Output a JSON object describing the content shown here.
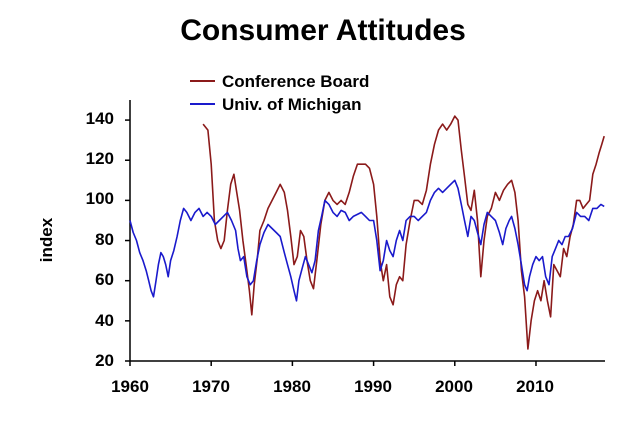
{
  "chart_data": {
    "type": "line",
    "title": "Consumer Attitudes",
    "xlabel": "",
    "ylabel": "index",
    "xlim": [
      1960,
      2018.5
    ],
    "ylim": [
      20,
      150
    ],
    "x_ticks": [
      "1960",
      "1970",
      "1980",
      "1990",
      "2000",
      "2010"
    ],
    "y_ticks": [
      "20",
      "40",
      "60",
      "80",
      "100",
      "120",
      "140"
    ],
    "grid": false,
    "legend": "top-left",
    "series": [
      {
        "name": "Conference Board",
        "color": "#8b1a1a",
        "points": [
          [
            1969.0,
            138
          ],
          [
            1969.6,
            135
          ],
          [
            1970.0,
            118
          ],
          [
            1970.4,
            90
          ],
          [
            1970.8,
            80
          ],
          [
            1971.2,
            76
          ],
          [
            1971.6,
            80
          ],
          [
            1972.0,
            95
          ],
          [
            1972.4,
            108
          ],
          [
            1972.8,
            113
          ],
          [
            1973.1,
            105
          ],
          [
            1973.5,
            95
          ],
          [
            1973.9,
            80
          ],
          [
            1974.3,
            68
          ],
          [
            1974.7,
            55
          ],
          [
            1975.0,
            43
          ],
          [
            1975.3,
            58
          ],
          [
            1975.7,
            72
          ],
          [
            1976.0,
            85
          ],
          [
            1976.5,
            90
          ],
          [
            1977.0,
            96
          ],
          [
            1977.5,
            100
          ],
          [
            1978.0,
            104
          ],
          [
            1978.5,
            108
          ],
          [
            1979.0,
            104
          ],
          [
            1979.4,
            95
          ],
          [
            1979.8,
            82
          ],
          [
            1980.2,
            68
          ],
          [
            1980.6,
            72
          ],
          [
            1981.0,
            85
          ],
          [
            1981.4,
            82
          ],
          [
            1981.8,
            70
          ],
          [
            1982.2,
            60
          ],
          [
            1982.6,
            56
          ],
          [
            1983.0,
            70
          ],
          [
            1983.5,
            88
          ],
          [
            1984.0,
            100
          ],
          [
            1984.5,
            104
          ],
          [
            1985.0,
            100
          ],
          [
            1985.5,
            98
          ],
          [
            1986.0,
            100
          ],
          [
            1986.5,
            98
          ],
          [
            1987.0,
            104
          ],
          [
            1987.5,
            112
          ],
          [
            1988.0,
            118
          ],
          [
            1988.5,
            118
          ],
          [
            1989.0,
            118
          ],
          [
            1989.5,
            116
          ],
          [
            1990.0,
            108
          ],
          [
            1990.4,
            92
          ],
          [
            1990.8,
            70
          ],
          [
            1991.2,
            60
          ],
          [
            1991.6,
            68
          ],
          [
            1992.0,
            52
          ],
          [
            1992.4,
            48
          ],
          [
            1992.8,
            58
          ],
          [
            1993.2,
            62
          ],
          [
            1993.6,
            60
          ],
          [
            1994.0,
            78
          ],
          [
            1994.5,
            90
          ],
          [
            1995.0,
            100
          ],
          [
            1995.5,
            100
          ],
          [
            1996.0,
            98
          ],
          [
            1996.5,
            105
          ],
          [
            1997.0,
            118
          ],
          [
            1997.5,
            128
          ],
          [
            1998.0,
            135
          ],
          [
            1998.5,
            138
          ],
          [
            1999.0,
            135
          ],
          [
            1999.5,
            138
          ],
          [
            2000.0,
            142
          ],
          [
            2000.4,
            140
          ],
          [
            2000.8,
            125
          ],
          [
            2001.2,
            112
          ],
          [
            2001.6,
            98
          ],
          [
            2002.0,
            95
          ],
          [
            2002.4,
            105
          ],
          [
            2002.8,
            90
          ],
          [
            2003.2,
            62
          ],
          [
            2003.6,
            80
          ],
          [
            2004.0,
            92
          ],
          [
            2004.5,
            96
          ],
          [
            2005.0,
            104
          ],
          [
            2005.5,
            100
          ],
          [
            2006.0,
            105
          ],
          [
            2006.5,
            108
          ],
          [
            2007.0,
            110
          ],
          [
            2007.4,
            104
          ],
          [
            2007.8,
            90
          ],
          [
            2008.2,
            65
          ],
          [
            2008.6,
            52
          ],
          [
            2009.0,
            26
          ],
          [
            2009.4,
            40
          ],
          [
            2009.8,
            50
          ],
          [
            2010.2,
            55
          ],
          [
            2010.6,
            50
          ],
          [
            2011.0,
            60
          ],
          [
            2011.4,
            50
          ],
          [
            2011.8,
            42
          ],
          [
            2012.2,
            68
          ],
          [
            2012.6,
            65
          ],
          [
            2013.0,
            62
          ],
          [
            2013.4,
            76
          ],
          [
            2013.8,
            72
          ],
          [
            2014.2,
            82
          ],
          [
            2014.6,
            88
          ],
          [
            2015.0,
            100
          ],
          [
            2015.4,
            100
          ],
          [
            2015.8,
            96
          ],
          [
            2016.2,
            98
          ],
          [
            2016.6,
            100
          ],
          [
            2017.0,
            113
          ],
          [
            2017.4,
            118
          ],
          [
            2017.8,
            124
          ],
          [
            2018.1,
            128
          ],
          [
            2018.4,
            132
          ]
        ]
      },
      {
        "name": "Univ. of Michigan",
        "color": "#1a1acc",
        "points": [
          [
            1960.0,
            90
          ],
          [
            1960.4,
            84
          ],
          [
            1960.8,
            80
          ],
          [
            1961.2,
            74
          ],
          [
            1961.6,
            70
          ],
          [
            1962.0,
            65
          ],
          [
            1962.3,
            60
          ],
          [
            1962.6,
            55
          ],
          [
            1962.9,
            52
          ],
          [
            1963.2,
            60
          ],
          [
            1963.5,
            68
          ],
          [
            1963.8,
            74
          ],
          [
            1964.1,
            72
          ],
          [
            1964.4,
            68
          ],
          [
            1964.7,
            62
          ],
          [
            1965.0,
            70
          ],
          [
            1965.4,
            75
          ],
          [
            1965.8,
            82
          ],
          [
            1966.2,
            90
          ],
          [
            1966.6,
            96
          ],
          [
            1967.0,
            94
          ],
          [
            1967.5,
            90
          ],
          [
            1968.0,
            94
          ],
          [
            1968.5,
            96
          ],
          [
            1969.0,
            92
          ],
          [
            1969.5,
            94
          ],
          [
            1970.0,
            92
          ],
          [
            1970.5,
            88
          ],
          [
            1971.0,
            90
          ],
          [
            1971.5,
            92
          ],
          [
            1972.0,
            94
          ],
          [
            1972.5,
            90
          ],
          [
            1973.0,
            85
          ],
          [
            1973.3,
            76
          ],
          [
            1973.6,
            70
          ],
          [
            1974.0,
            72
          ],
          [
            1974.4,
            62
          ],
          [
            1974.8,
            58
          ],
          [
            1975.2,
            60
          ],
          [
            1975.6,
            70
          ],
          [
            1976.0,
            78
          ],
          [
            1976.5,
            84
          ],
          [
            1977.0,
            88
          ],
          [
            1977.5,
            86
          ],
          [
            1978.0,
            84
          ],
          [
            1978.5,
            82
          ],
          [
            1979.0,
            74
          ],
          [
            1979.4,
            68
          ],
          [
            1979.8,
            62
          ],
          [
            1980.2,
            55
          ],
          [
            1980.5,
            50
          ],
          [
            1980.8,
            60
          ],
          [
            1981.2,
            66
          ],
          [
            1981.6,
            72
          ],
          [
            1982.0,
            68
          ],
          [
            1982.4,
            64
          ],
          [
            1982.8,
            70
          ],
          [
            1983.2,
            85
          ],
          [
            1983.6,
            92
          ],
          [
            1984.0,
            100
          ],
          [
            1984.5,
            98
          ],
          [
            1985.0,
            94
          ],
          [
            1985.5,
            92
          ],
          [
            1986.0,
            95
          ],
          [
            1986.5,
            94
          ],
          [
            1987.0,
            90
          ],
          [
            1987.5,
            92
          ],
          [
            1988.0,
            93
          ],
          [
            1988.5,
            94
          ],
          [
            1989.0,
            92
          ],
          [
            1989.5,
            90
          ],
          [
            1990.0,
            90
          ],
          [
            1990.4,
            80
          ],
          [
            1990.8,
            65
          ],
          [
            1991.2,
            70
          ],
          [
            1991.6,
            80
          ],
          [
            1992.0,
            75
          ],
          [
            1992.4,
            72
          ],
          [
            1992.8,
            80
          ],
          [
            1993.2,
            85
          ],
          [
            1993.6,
            80
          ],
          [
            1994.0,
            90
          ],
          [
            1994.5,
            92
          ],
          [
            1995.0,
            92
          ],
          [
            1995.5,
            90
          ],
          [
            1996.0,
            92
          ],
          [
            1996.5,
            94
          ],
          [
            1997.0,
            100
          ],
          [
            1997.5,
            104
          ],
          [
            1998.0,
            106
          ],
          [
            1998.5,
            104
          ],
          [
            1999.0,
            106
          ],
          [
            1999.5,
            108
          ],
          [
            2000.0,
            110
          ],
          [
            2000.4,
            106
          ],
          [
            2000.8,
            98
          ],
          [
            2001.2,
            90
          ],
          [
            2001.6,
            82
          ],
          [
            2002.0,
            92
          ],
          [
            2002.4,
            90
          ],
          [
            2002.8,
            84
          ],
          [
            2003.2,
            78
          ],
          [
            2003.6,
            88
          ],
          [
            2004.0,
            94
          ],
          [
            2004.5,
            92
          ],
          [
            2005.0,
            90
          ],
          [
            2005.5,
            84
          ],
          [
            2005.9,
            78
          ],
          [
            2006.3,
            86
          ],
          [
            2006.7,
            90
          ],
          [
            2007.0,
            92
          ],
          [
            2007.4,
            86
          ],
          [
            2007.8,
            78
          ],
          [
            2008.2,
            68
          ],
          [
            2008.6,
            58
          ],
          [
            2008.9,
            55
          ],
          [
            2009.2,
            62
          ],
          [
            2009.6,
            68
          ],
          [
            2010.0,
            72
          ],
          [
            2010.4,
            70
          ],
          [
            2010.8,
            72
          ],
          [
            2011.2,
            62
          ],
          [
            2011.6,
            58
          ],
          [
            2012.0,
            72
          ],
          [
            2012.4,
            76
          ],
          [
            2012.8,
            80
          ],
          [
            2013.2,
            78
          ],
          [
            2013.6,
            82
          ],
          [
            2014.0,
            82
          ],
          [
            2014.5,
            86
          ],
          [
            2015.0,
            94
          ],
          [
            2015.5,
            92
          ],
          [
            2016.0,
            92
          ],
          [
            2016.5,
            90
          ],
          [
            2017.0,
            96
          ],
          [
            2017.5,
            96
          ],
          [
            2018.0,
            98
          ],
          [
            2018.4,
            97
          ]
        ]
      }
    ]
  }
}
